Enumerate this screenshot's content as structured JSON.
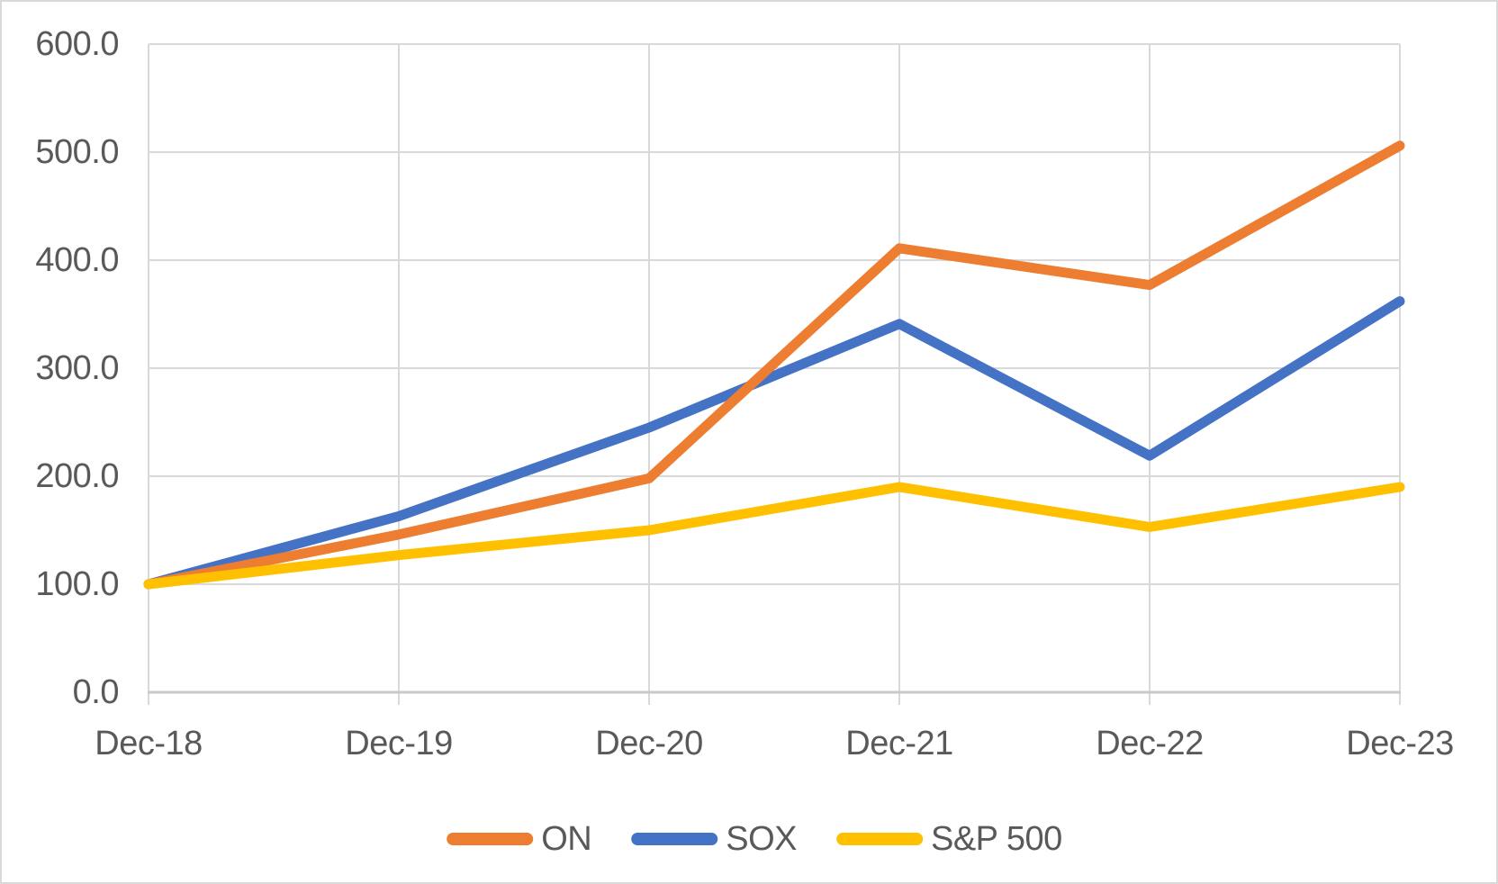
{
  "chart_data": {
    "type": "line",
    "x_labels": [
      "Dec-18",
      "Dec-19",
      "Dec-20",
      "Dec-21",
      "Dec-22",
      "Dec-23"
    ],
    "y_tick_labels": [
      "600.0",
      "500.0",
      "400.0",
      "300.0",
      "200.0",
      "100.0",
      "0.0"
    ],
    "ylim": [
      0,
      600
    ],
    "y_step": 100,
    "grid": true,
    "legend_position": "bottom-center",
    "series": [
      {
        "name": "ON",
        "color": "#ED7D31",
        "values": [
          100.0,
          146.0,
          198.0,
          411.0,
          377.0,
          506.0
        ]
      },
      {
        "name": "SOX",
        "color": "#4472C4",
        "values": [
          100.0,
          163.0,
          245.0,
          341.0,
          219.0,
          362.0
        ]
      },
      {
        "name": "S&P 500",
        "color": "#FFC000",
        "values": [
          100.0,
          127.0,
          150.0,
          190.0,
          153.0,
          190.0
        ]
      }
    ],
    "style": {
      "gridline_color": "#D9D9D9",
      "axis_line_color": "#C9C9C9",
      "label_color": "#595959",
      "background_color": "#FFFFFF",
      "border_color": "#D9D9D9"
    }
  }
}
